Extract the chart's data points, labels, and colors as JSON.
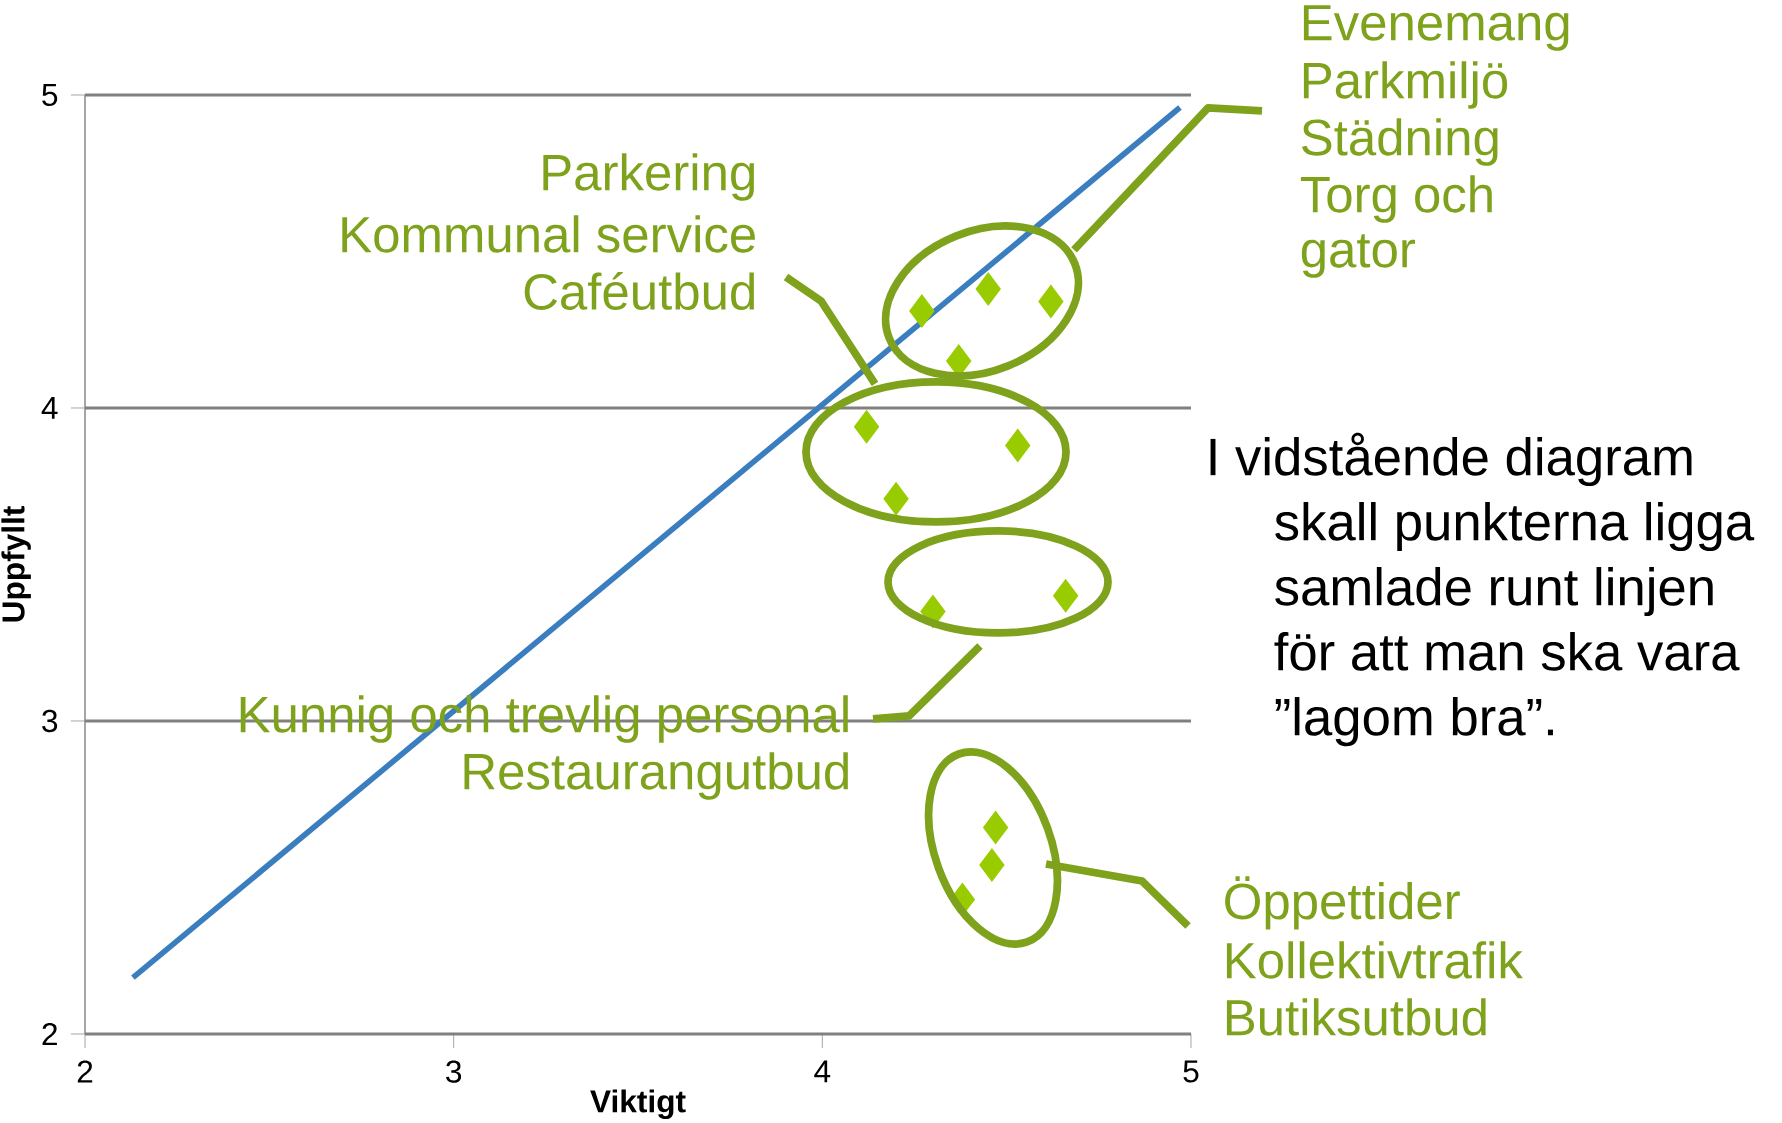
{
  "chart_data": {
    "type": "scatter",
    "xlabel": "Viktigt",
    "ylabel": "Uppfyllt",
    "xlim": [
      2,
      5
    ],
    "ylim": [
      2,
      5
    ],
    "xticks": [
      2,
      3,
      4,
      5
    ],
    "yticks": [
      2,
      3,
      4,
      5
    ],
    "grid": "y",
    "marker": "diamond",
    "series": [
      {
        "color": "#99cc00",
        "x": [
          4.27,
          4.45,
          4.62,
          4.37,
          4.12,
          4.53,
          4.2,
          4.3,
          4.66,
          4.47,
          4.46,
          4.38
        ],
        "values": [
          4.31,
          4.38,
          4.34,
          4.15,
          3.94,
          3.88,
          3.71,
          3.35,
          3.4,
          2.66,
          2.54,
          2.43
        ]
      },
      {
        "type": "line",
        "color": "#3a7ebf",
        "marker": "none",
        "x": [
          2.13,
          4.97
        ],
        "values": [
          2.18,
          4.96
        ]
      }
    ],
    "annotations": [
      "Evenemang",
      "Parkmiljö",
      "Städning",
      "Torg och",
      "gator",
      "Parkering",
      "Kommunal service",
      "Caféutbud",
      "Kunnig och trevlig personal",
      "Restaurangutbud",
      "Öppettider",
      "Kollektivtrafik",
      "Butiksutbud",
      "I vidstående diagram skall punkterna ligga samlade runt linjen för att man ska vara ”lagom bra”."
    ]
  }
}
